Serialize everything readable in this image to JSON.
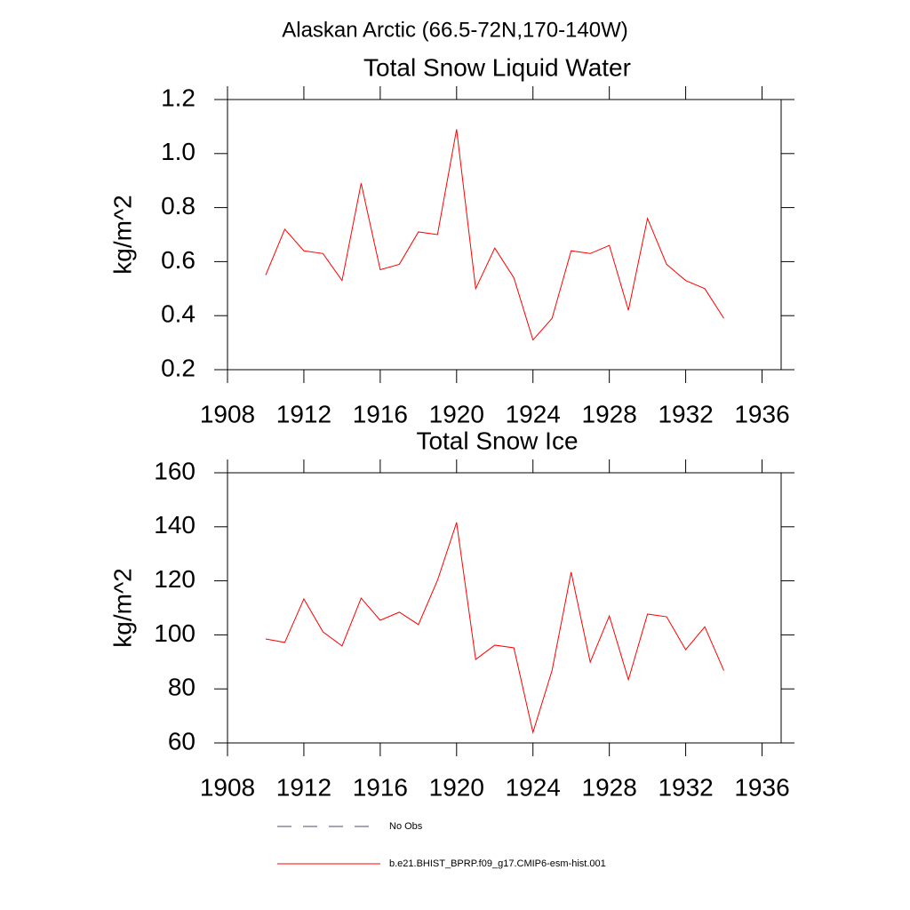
{
  "title": "Alaskan Arctic (66.5-72N,170-140W)",
  "chart_data": [
    {
      "type": "line",
      "title": "Total Snow Liquid Water",
      "y_label": "kg/m^2",
      "x": [
        1910,
        1911,
        1912,
        1913,
        1914,
        1915,
        1916,
        1917,
        1918,
        1919,
        1920,
        1921,
        1922,
        1923,
        1924,
        1925,
        1926,
        1927,
        1928,
        1929,
        1930,
        1931,
        1932,
        1933,
        1934
      ],
      "series": [
        {
          "name": "b.e21.BHIST_BPRP.f09_g17.CMIP6-esm-hist.001",
          "color": "#ff0000",
          "values": [
            0.55,
            0.72,
            0.64,
            0.63,
            0.53,
            0.89,
            0.57,
            0.59,
            0.71,
            0.7,
            1.09,
            0.5,
            0.65,
            0.54,
            0.31,
            0.39,
            0.64,
            0.63,
            0.66,
            0.42,
            0.76,
            0.59,
            0.53,
            0.5,
            0.39
          ]
        }
      ],
      "xlim": [
        1908,
        1937
      ],
      "xticks": [
        1908,
        1912,
        1916,
        1920,
        1924,
        1928,
        1932,
        1936
      ],
      "ylim": [
        0.2,
        1.2
      ],
      "yticks": [
        0.2,
        0.4,
        0.6,
        0.8,
        {
          "value": 1,
          "label": "1.0"
        },
        1.2
      ]
    },
    {
      "type": "line",
      "title": "Total Snow Ice",
      "y_label": "kg/m^2",
      "x": [
        1910,
        1911,
        1912,
        1913,
        1914,
        1915,
        1916,
        1917,
        1918,
        1919,
        1920,
        1921,
        1922,
        1923,
        1924,
        1925,
        1926,
        1927,
        1928,
        1929,
        1930,
        1931,
        1932,
        1933,
        1934
      ],
      "series": [
        {
          "name": "b.e21.BHIST_BPRP.f09_g17.CMIP6-esm-hist.001",
          "color": "#ff0000",
          "values": [
            98.5,
            97.2,
            113.3,
            101.1,
            95.9,
            113.6,
            105.4,
            108.4,
            103.8,
            120.2,
            141.6,
            90.9,
            96.2,
            95.2,
            63.9,
            86.8,
            123.2,
            89.9,
            107.0,
            83.4,
            107.7,
            106.7,
            94.5,
            103.0,
            86.8
          ]
        }
      ],
      "xlim": [
        1908,
        1937
      ],
      "xticks": [
        1908,
        1912,
        1916,
        1920,
        1924,
        1928,
        1932,
        1936
      ],
      "ylim": [
        60,
        160
      ],
      "yticks": [
        60,
        80,
        100,
        120,
        140,
        160
      ]
    }
  ],
  "legend": [
    {
      "name": "No Obs",
      "color": "#4a4a7a",
      "dash": true
    },
    {
      "name": "b.e21.BHIST_BPRP.f09_g17.CMIP6-esm-hist.001",
      "color": "#ff0000",
      "dash": false
    }
  ]
}
